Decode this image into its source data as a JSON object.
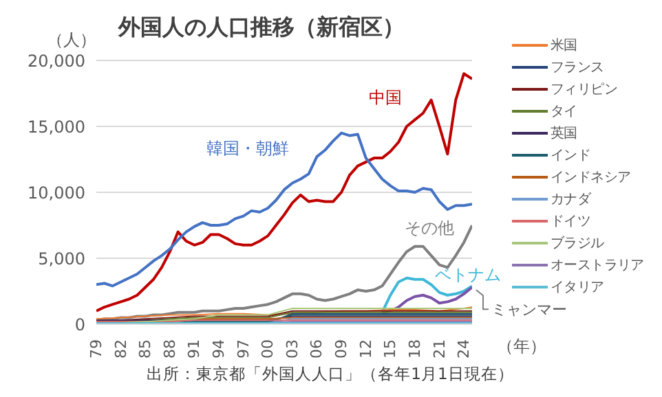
{
  "chart_data": {
    "type": "line",
    "title": "外国人の人口推移（新宿区）",
    "ylabel": "（人）",
    "xlabel": "（年）",
    "x": [
      1979,
      1980,
      1981,
      1982,
      1983,
      1984,
      1985,
      1986,
      1987,
      1988,
      1989,
      1990,
      1991,
      1992,
      1993,
      1994,
      1995,
      1996,
      1997,
      1998,
      1999,
      2000,
      2001,
      2002,
      2003,
      2004,
      2005,
      2006,
      2007,
      2008,
      2009,
      2010,
      2011,
      2012,
      2013,
      2014,
      2015,
      2016,
      2017,
      2018,
      2019,
      2020,
      2021,
      2022,
      2023,
      2024,
      2025
    ],
    "xlim": [
      1979,
      2025
    ],
    "xticks": [
      {
        "value": 1979,
        "label": "79"
      },
      {
        "value": 1982,
        "label": "82"
      },
      {
        "value": 1985,
        "label": "85"
      },
      {
        "value": 1988,
        "label": "88"
      },
      {
        "value": 1991,
        "label": "91"
      },
      {
        "value": 1994,
        "label": "94"
      },
      {
        "value": 1997,
        "label": "97"
      },
      {
        "value": 2000,
        "label": "00"
      },
      {
        "value": 2003,
        "label": "03"
      },
      {
        "value": 2006,
        "label": "06"
      },
      {
        "value": 2009,
        "label": "09"
      },
      {
        "value": 2012,
        "label": "12"
      },
      {
        "value": 2015,
        "label": "15"
      },
      {
        "value": 2018,
        "label": "18"
      },
      {
        "value": 2021,
        "label": "21"
      },
      {
        "value": 2024,
        "label": "24"
      }
    ],
    "ylim": [
      0,
      20000
    ],
    "yticks": [
      0,
      {
        "value": 5000,
        "label": "5,000"
      },
      {
        "value": 10000,
        "label": "10,000"
      },
      {
        "value": 15000,
        "label": "15,000"
      },
      {
        "value": 20000,
        "label": "20,000"
      }
    ],
    "grid": "y",
    "legend": "right",
    "marker": "none",
    "series": [
      {
        "color": "#c00000",
        "values": [
          1000,
          1300,
          1500,
          1700,
          1900,
          2200,
          2800,
          3400,
          4300,
          5500,
          7000,
          6300,
          6000,
          6200,
          6800,
          6800,
          6500,
          6100,
          6000,
          6000,
          6300,
          6700,
          7500,
          8300,
          9200,
          9800,
          9300,
          9400,
          9300,
          9300,
          10000,
          11300,
          12000,
          12300,
          12600,
          12600,
          13100,
          13800,
          15000,
          15500,
          16000,
          17000,
          15000,
          12900,
          17000,
          19000,
          18600
        ]
      },
      {
        "color": "#4472c4",
        "values": [
          3000,
          3100,
          2900,
          3200,
          3500,
          3800,
          4300,
          4800,
          5200,
          5700,
          6400,
          7000,
          7400,
          7700,
          7500,
          7500,
          7600,
          8000,
          8200,
          8600,
          8500,
          8800,
          9400,
          10200,
          10700,
          11000,
          11400,
          12700,
          13200,
          13900,
          14500,
          14300,
          14400,
          12600,
          11800,
          11000,
          10500,
          10100,
          10100,
          10000,
          10300,
          10200,
          9300,
          8700,
          9000,
          9000,
          9100
        ]
      },
      {
        "color": "#7f7f7f",
        "values": [
          300,
          400,
          400,
          500,
          500,
          600,
          600,
          700,
          700,
          800,
          900,
          900,
          900,
          1000,
          1000,
          1000,
          1100,
          1200,
          1200,
          1300,
          1400,
          1500,
          1700,
          2000,
          2300,
          2300,
          2200,
          1900,
          1800,
          1900,
          2100,
          2300,
          2600,
          2500,
          2600,
          2900,
          3800,
          4700,
          5500,
          5900,
          5900,
          5200,
          4500,
          4300,
          5200,
          6200,
          7500
        ]
      },
      {
        "color": "#3fb8d8",
        "values": [
          null,
          null,
          null,
          null,
          null,
          null,
          null,
          null,
          null,
          null,
          null,
          null,
          null,
          null,
          null,
          null,
          null,
          null,
          null,
          null,
          null,
          null,
          null,
          null,
          null,
          null,
          null,
          null,
          null,
          null,
          null,
          null,
          null,
          null,
          null,
          900,
          2200,
          3200,
          3500,
          3400,
          3400,
          3000,
          2400,
          2200,
          2300,
          2500,
          2900
        ]
      },
      {
        "color": "#7a52a8",
        "values": [
          null,
          null,
          null,
          null,
          null,
          null,
          null,
          null,
          null,
          null,
          null,
          null,
          null,
          null,
          null,
          null,
          null,
          null,
          null,
          null,
          null,
          null,
          null,
          null,
          null,
          null,
          null,
          null,
          null,
          null,
          null,
          null,
          null,
          null,
          null,
          900,
          1000,
          1300,
          1800,
          2100,
          2200,
          2000,
          1600,
          1700,
          1900,
          2300,
          2800
        ]
      },
      {
        "name": "米国",
        "color": "#ed7d31",
        "x": [
          1979,
          1982,
          1985,
          1988,
          1991,
          1994,
          1997,
          2000,
          2003,
          2006,
          2009,
          2012,
          2015,
          2018,
          2021,
          2024,
          2025
        ],
        "values": [
          400,
          500,
          600,
          700,
          700,
          800,
          800,
          700,
          800,
          900,
          1000,
          1000,
          1100,
          1100,
          1000,
          1200,
          1300
        ]
      },
      {
        "name": "フランス",
        "color": "#264478",
        "x": [
          1979,
          1982,
          1985,
          1988,
          1991,
          1994,
          1997,
          2000,
          2003,
          2006,
          2009,
          2012,
          2015,
          2018,
          2021,
          2024,
          2025
        ],
        "values": [
          100,
          100,
          100,
          100,
          100,
          100,
          100,
          100,
          800,
          800,
          800,
          800,
          800,
          800,
          800,
          800,
          800
        ]
      },
      {
        "name": "フィリピン",
        "color": "#7b1a1a",
        "x": [
          1979,
          1982,
          1985,
          1988,
          1991,
          1994,
          1997,
          2000,
          2003,
          2006,
          2009,
          2012,
          2015,
          2018,
          2021,
          2024,
          2025
        ],
        "values": [
          200,
          300,
          400,
          500,
          600,
          600,
          600,
          600,
          1000,
          1000,
          1000,
          1000,
          1000,
          1000,
          1000,
          1000,
          1000
        ]
      },
      {
        "name": "タイ",
        "color": "#637c2f",
        "x": [
          1979,
          1982,
          1985,
          1988,
          1991,
          1994,
          1997,
          2000,
          2003,
          2006,
          2009,
          2012,
          2015,
          2018,
          2021,
          2024,
          2025
        ],
        "values": [
          100,
          200,
          300,
          400,
          500,
          500,
          500,
          500,
          900,
          900,
          900,
          900,
          900,
          900,
          900,
          900,
          900
        ]
      },
      {
        "name": "英国",
        "color": "#3c2a5e",
        "x": [
          1979,
          1982,
          1985,
          1988,
          1991,
          1994,
          1997,
          2000,
          2003,
          2006,
          2009,
          2012,
          2015,
          2018,
          2021,
          2024,
          2025
        ],
        "values": [
          300,
          300,
          300,
          300,
          300,
          300,
          300,
          300,
          600,
          600,
          600,
          600,
          600,
          600,
          600,
          600,
          600
        ]
      },
      {
        "name": "インド",
        "color": "#1d5f6e",
        "x": [
          1979,
          1982,
          1985,
          1988,
          1991,
          1994,
          1997,
          2000,
          2003,
          2006,
          2009,
          2012,
          2015,
          2018,
          2021,
          2024,
          2025
        ],
        "values": [
          100,
          100,
          100,
          100,
          200,
          200,
          200,
          200,
          700,
          700,
          700,
          700,
          700,
          700,
          700,
          700,
          700
        ]
      },
      {
        "name": "インドネシア",
        "color": "#b85b17",
        "x": [
          1979,
          1982,
          1985,
          1988,
          1991,
          1994,
          1997,
          2000,
          2003,
          2006,
          2009,
          2012,
          2015,
          2018,
          2021,
          2024,
          2025
        ],
        "values": [
          200,
          200,
          200,
          200,
          400,
          400,
          400,
          400,
          500,
          500,
          500,
          500,
          500,
          500,
          500,
          500,
          500
        ]
      },
      {
        "name": "カナダ",
        "color": "#6f9bd1",
        "x": [
          1979,
          1982,
          1985,
          1988,
          1991,
          1994,
          1997,
          2000,
          2003,
          2006,
          2009,
          2012,
          2015,
          2018,
          2021,
          2024,
          2025
        ],
        "values": [
          100,
          100,
          100,
          100,
          100,
          100,
          100,
          100,
          400,
          400,
          400,
          400,
          400,
          400,
          400,
          400,
          400
        ]
      },
      {
        "name": "ドイツ",
        "color": "#d9686a",
        "x": [
          1979,
          1982,
          1985,
          1988,
          1991,
          1994,
          1997,
          2000,
          2003,
          2006,
          2009,
          2012,
          2015,
          2018,
          2021,
          2024,
          2025
        ],
        "values": [
          200,
          200,
          200,
          200,
          300,
          300,
          300,
          300,
          300,
          300,
          300,
          300,
          300,
          300,
          300,
          300,
          300
        ]
      },
      {
        "name": "ブラジル",
        "color": "#a9c77a",
        "x": [
          1979,
          1982,
          1985,
          1988,
          1991,
          1994,
          1997,
          2000,
          2003,
          2006,
          2009,
          2012,
          2015,
          2018,
          2021,
          2024,
          2025
        ],
        "values": [
          100,
          100,
          200,
          300,
          400,
          700,
          700,
          700,
          1200,
          1200,
          1200,
          1200,
          1200,
          1200,
          1200,
          1200,
          1200
        ]
      },
      {
        "name": "オーストラリア",
        "color": "#8b72b0",
        "x": [
          1985,
          1988,
          1991,
          1994,
          1997,
          2000,
          2003,
          2006,
          2009,
          2012,
          2015,
          2018,
          2021,
          2024,
          2025
        ],
        "values": [
          100,
          100,
          100,
          100,
          100,
          100,
          200,
          200,
          200,
          200,
          200,
          200,
          200,
          200,
          200
        ]
      },
      {
        "name": "イタリア",
        "color": "#5bbcd6",
        "x": [
          1979,
          1982,
          1985,
          1988,
          1991,
          1994,
          1997,
          2000,
          2003,
          2006,
          2009,
          2012,
          2015,
          2018,
          2021,
          2024,
          2025
        ],
        "values": [
          100,
          100,
          100,
          100,
          100,
          100,
          100,
          100,
          100,
          100,
          100,
          100,
          100,
          100,
          100,
          100,
          100
        ]
      }
    ],
    "annotations": [
      "中国",
      "韓国・朝鮮",
      "その他",
      "ベトナム",
      {
        "text": "ミャンマー",
        "x": 2025,
        "y": 2800
      },
      "出所：東京都「外国人人口」（各年1月1日現在）"
    ]
  }
}
